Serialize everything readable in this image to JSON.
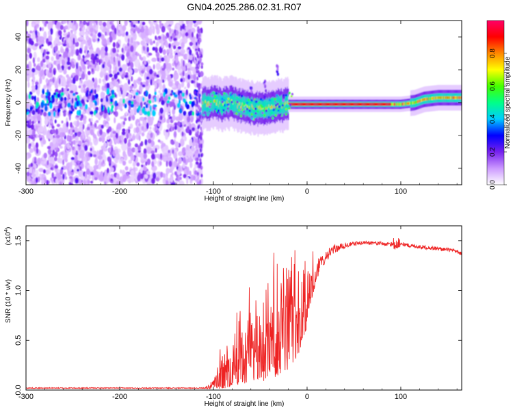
{
  "title": "GN04.2025.286.02.31.R07",
  "chart_data": [
    {
      "type": "heatmap",
      "panel": "spectrogram",
      "xlabel": "Height of straight line (km)",
      "ylabel": "Frequency (Hz)",
      "xlim": [
        -300,
        165
      ],
      "ylim": [
        -50,
        50
      ],
      "xticks": [
        -300,
        -200,
        -100,
        0,
        100
      ],
      "xtick_labels": [
        "-300",
        "-200",
        "-100",
        "0",
        "100"
      ],
      "yticks": [
        -40,
        -20,
        0,
        20,
        40
      ],
      "ytick_labels": [
        "-40",
        "-20",
        "0",
        "20",
        "40"
      ],
      "colorbar": {
        "label": "Normalized spectral amplitude",
        "range": [
          0,
          1
        ],
        "ticks": [
          0.0,
          0.2,
          0.4,
          0.6,
          0.8
        ],
        "tick_labels": [
          "0.0",
          "0.2",
          "0.4",
          "0.6",
          "0.8"
        ],
        "colors": [
          "#ffffff",
          "#cc99ff",
          "#7722ee",
          "#0000ff",
          "#00ccff",
          "#00ff88",
          "#44ff00",
          "#ffff00",
          "#ff8800",
          "#ff0000",
          "#ff0066"
        ]
      },
      "features": {
        "noise_region_x": [
          -300,
          -112
        ],
        "carrier_track": [
          {
            "x": -112,
            "y": -1
          },
          {
            "x": -100,
            "y": 0
          },
          {
            "x": -90,
            "y": -1
          },
          {
            "x": -80,
            "y": 0
          },
          {
            "x": -70,
            "y": -2
          },
          {
            "x": -60,
            "y": -3
          },
          {
            "x": -50,
            "y": -4
          },
          {
            "x": -40,
            "y": -3
          },
          {
            "x": -30,
            "y": -2
          },
          {
            "x": -20,
            "y": -1
          },
          {
            "x": 0,
            "y": -1
          },
          {
            "x": 50,
            "y": -1
          },
          {
            "x": 100,
            "y": -1
          },
          {
            "x": 115,
            "y": 0
          },
          {
            "x": 125,
            "y": 2
          },
          {
            "x": 140,
            "y": 3
          },
          {
            "x": 165,
            "y": 3
          }
        ]
      }
    },
    {
      "type": "line",
      "panel": "snr",
      "xlabel": "Height of straight line (km)",
      "ylabel": "SNR (10 * v/v)",
      "yscale_label": "(x10^4)",
      "xlim": [
        -300,
        165
      ],
      "ylim": [
        0,
        1.65
      ],
      "xticks": [
        -300,
        -200,
        -100,
        0,
        100
      ],
      "xtick_labels": [
        "-300",
        "-200",
        "-100",
        "0",
        "100"
      ],
      "yticks": [
        0.0,
        0.5,
        1.0,
        1.5
      ],
      "ytick_labels": [
        "0.0",
        "0.5",
        "1.0",
        "1.5"
      ],
      "color": "#ee2222",
      "series": [
        {
          "x": [
            -300,
            -250,
            -200,
            -150,
            -110,
            -100,
            -90,
            -80,
            -70,
            -60,
            -50,
            -40,
            -30,
            -20,
            -10,
            0,
            10,
            20,
            30,
            40,
            50,
            60,
            70,
            80,
            90,
            95,
            100,
            110,
            120,
            130,
            140,
            150,
            160,
            165
          ],
          "values": [
            0.02,
            0.02,
            0.02,
            0.02,
            0.02,
            0.05,
            0.15,
            0.25,
            0.3,
            0.35,
            0.4,
            0.45,
            0.5,
            0.55,
            0.65,
            0.85,
            1.2,
            1.35,
            1.42,
            1.45,
            1.47,
            1.48,
            1.48,
            1.47,
            1.46,
            1.5,
            1.47,
            1.45,
            1.44,
            1.43,
            1.42,
            1.41,
            1.39,
            1.37
          ],
          "amplitude": [
            0.005,
            0.005,
            0.005,
            0.005,
            0.005,
            0.05,
            0.2,
            0.3,
            0.35,
            0.4,
            0.45,
            0.5,
            0.5,
            0.5,
            0.45,
            0.3,
            0.1,
            0.06,
            0.04,
            0.03,
            0.02,
            0.02,
            0.02,
            0.02,
            0.02,
            0.12,
            0.02,
            0.02,
            0.02,
            0.02,
            0.02,
            0.02,
            0.02,
            0.02
          ]
        }
      ]
    }
  ]
}
